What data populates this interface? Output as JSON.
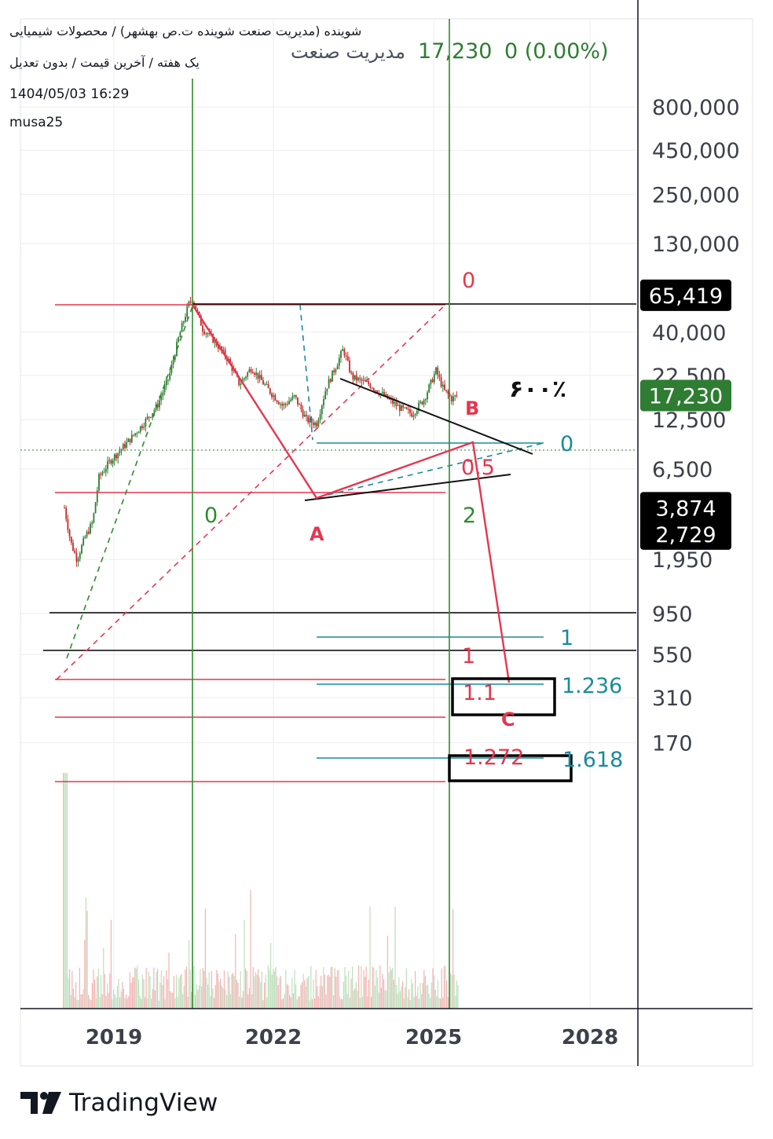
{
  "header": {
    "symbol_line": "شوینده (مدیریت صنعت شوینده ت.ص بهشهر) / محصولات شیمیایی",
    "settings_line": "یک هفته / آخرین قیمت / بدون تعدیل",
    "datetime": "1404/05/03 16:29",
    "author": "musa25",
    "legend_name": "مدیریت صنعت",
    "legend_price": "17,230",
    "legend_change": "0 (0.00%)"
  },
  "chart_data": {
    "type": "candlestick",
    "scale": "log",
    "y_tick_labels": [
      "800,000",
      "450,000",
      "250,000",
      "130,000",
      "40,000",
      "22,500",
      "12,500",
      "6,500",
      "1,950",
      "950",
      "550",
      "310",
      "170"
    ],
    "x_tick_labels": [
      "2019",
      "2022",
      "2025",
      "2028"
    ],
    "price_markers": [
      {
        "label": "65,419",
        "value": 65419,
        "style": "black"
      },
      {
        "label": "17,230",
        "value": 17230,
        "style": "green"
      },
      {
        "label": "3,874",
        "value": 3874,
        "style": "black"
      },
      {
        "label": "2,729",
        "value": 2729,
        "style": "black"
      }
    ],
    "annotations": [
      {
        "text": "0",
        "color": "#e5364e"
      },
      {
        "text": "0",
        "color": "#2e8b2e"
      },
      {
        "text": "2",
        "color": "#2e8b2e"
      },
      {
        "text": "A",
        "color": "#e5364e"
      },
      {
        "text": "B",
        "color": "#e5364e"
      },
      {
        "text": "C",
        "color": "#e5364e"
      },
      {
        "text": "0",
        "color": "#1b8a9c"
      },
      {
        "text": "0.5",
        "color": "#e5364e"
      },
      {
        "text": "1",
        "color": "#1b8a9c"
      },
      {
        "text": "1",
        "color": "#e5364e"
      },
      {
        "text": "1.236",
        "color": "#1b8a9c"
      },
      {
        "text": "1.1",
        "color": "#e5364e"
      },
      {
        "text": "1.272",
        "color": "#e5364e"
      },
      {
        "text": "1.618",
        "color": "#1b8a9c"
      },
      {
        "text": "۶۰۰٪",
        "color": "#111111"
      }
    ],
    "colors": {
      "up": "#2e7d32",
      "down": "#c62828",
      "fib_red": "#e5364e",
      "fib_teal": "#1b8a9c",
      "cycle_green": "#2e8b2e",
      "last_price": "#2e7d32"
    }
  },
  "brand": {
    "name": "TradingView"
  }
}
